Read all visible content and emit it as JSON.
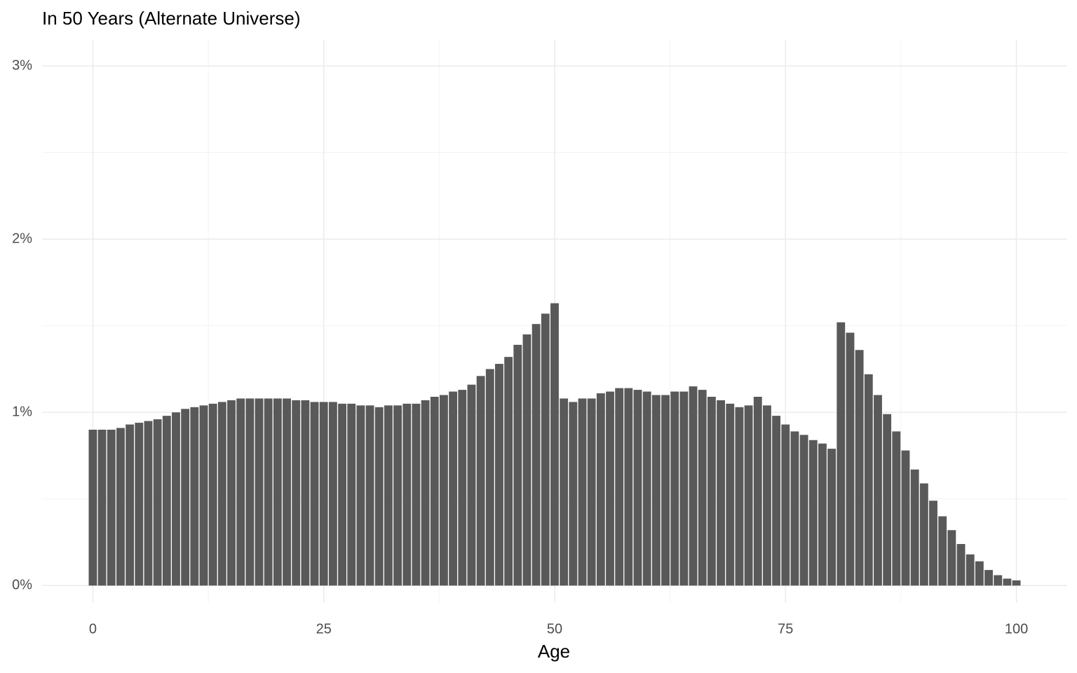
{
  "chart_data": {
    "type": "bar",
    "title": "In 50 Years (Alternate Universe)",
    "x_label": "Age",
    "x": [
      0,
      1,
      2,
      3,
      4,
      5,
      6,
      7,
      8,
      9,
      10,
      11,
      12,
      13,
      14,
      15,
      16,
      17,
      18,
      19,
      20,
      21,
      22,
      23,
      24,
      25,
      26,
      27,
      28,
      29,
      30,
      31,
      32,
      33,
      34,
      35,
      36,
      37,
      38,
      39,
      40,
      41,
      42,
      43,
      44,
      45,
      46,
      47,
      48,
      49,
      50,
      51,
      52,
      53,
      54,
      55,
      56,
      57,
      58,
      59,
      60,
      61,
      62,
      63,
      64,
      65,
      66,
      67,
      68,
      69,
      70,
      71,
      72,
      73,
      74,
      75,
      76,
      77,
      78,
      79,
      80,
      81,
      82,
      83,
      84,
      85,
      86,
      87,
      88,
      89,
      90,
      91,
      92,
      93,
      94,
      95,
      96,
      97,
      98,
      99,
      100
    ],
    "values": [
      0.9,
      0.9,
      0.9,
      0.91,
      0.93,
      0.94,
      0.95,
      0.96,
      0.98,
      1.0,
      1.02,
      1.03,
      1.04,
      1.05,
      1.06,
      1.07,
      1.08,
      1.08,
      1.08,
      1.08,
      1.08,
      1.08,
      1.07,
      1.07,
      1.06,
      1.06,
      1.06,
      1.05,
      1.05,
      1.04,
      1.04,
      1.03,
      1.04,
      1.04,
      1.05,
      1.05,
      1.07,
      1.09,
      1.1,
      1.12,
      1.13,
      1.16,
      1.21,
      1.25,
      1.28,
      1.32,
      1.39,
      1.45,
      1.51,
      1.57,
      1.63,
      1.08,
      1.06,
      1.08,
      1.08,
      1.11,
      1.12,
      1.14,
      1.14,
      1.13,
      1.12,
      1.1,
      1.1,
      1.12,
      1.12,
      1.15,
      1.13,
      1.09,
      1.07,
      1.05,
      1.03,
      1.04,
      1.09,
      1.04,
      0.98,
      0.93,
      0.89,
      0.87,
      0.84,
      0.82,
      0.79,
      1.52,
      1.46,
      1.36,
      1.22,
      1.1,
      0.99,
      0.89,
      0.78,
      0.67,
      0.59,
      0.49,
      0.4,
      0.32,
      0.24,
      0.18,
      0.14,
      0.09,
      0.06,
      0.04,
      0.03
    ],
    "color": "#595959",
    "xlim": [
      -5.5,
      105.5
    ],
    "xticks": [
      0,
      25,
      50,
      75,
      100
    ],
    "ylim": [
      -0.1,
      3.15
    ],
    "yticks": [
      {
        "value": 0,
        "label": "0%"
      },
      {
        "value": 1,
        "label": "1%"
      },
      {
        "value": 2,
        "label": "2%"
      },
      {
        "value": 3,
        "label": "3%"
      }
    ],
    "grid": true
  }
}
